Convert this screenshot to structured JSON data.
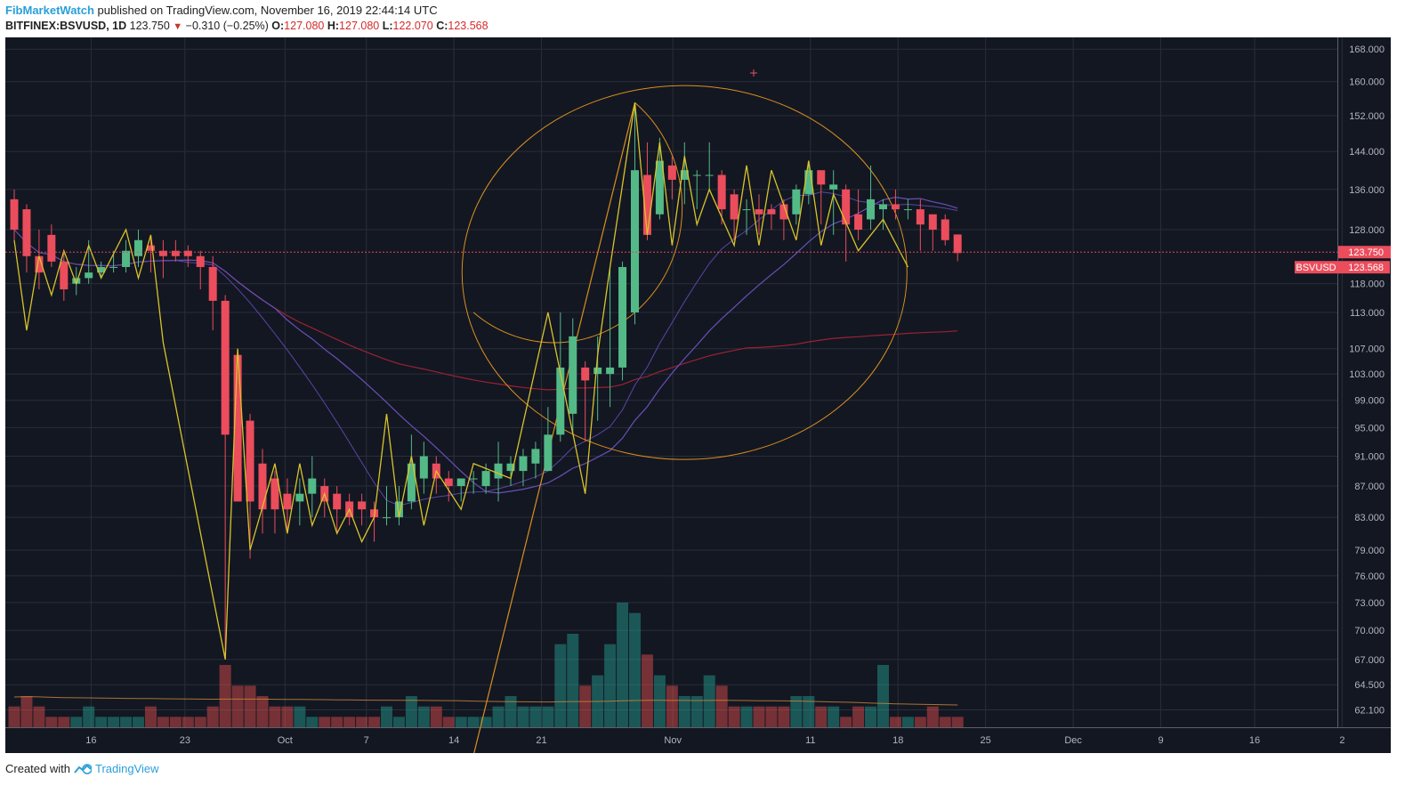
{
  "header": {
    "author": "FibMarketWatch",
    "published": "published on TradingView.com, November 16, 2019 22:44:14 UTC",
    "symbol": "BITFINEX:BSVUSD, 1D",
    "last": "123.750",
    "change": "−0.310 (−0.25%)",
    "o_label": "O:",
    "o_val": "127.080",
    "h_label": "H:",
    "h_val": "127.080",
    "l_label": "L:",
    "l_val": "122.070",
    "c_label": "C:",
    "c_val": "123.568"
  },
  "footer": {
    "created_with": "Created with",
    "brand": "TradingView"
  },
  "colors": {
    "background": "#131722",
    "grid": "#2a2e39",
    "up": "#53b987",
    "down": "#eb4d5c",
    "zigzag": "#d9c32a",
    "fib": "#d8901e",
    "ma_purple": "#6a4fb8",
    "ma_red": "#9b2232"
  },
  "chart_data": {
    "type": "candlestick",
    "symbol": "BSVUSD",
    "y_axis_labels": [
      "168.000",
      "160.000",
      "152.000",
      "144.000",
      "136.000",
      "128.000",
      "118.000",
      "113.000",
      "107.000",
      "103.000",
      "99.000",
      "95.000",
      "91.000",
      "87.000",
      "83.000",
      "79.000",
      "76.000",
      "73.000",
      "70.000",
      "67.000",
      "64.500",
      "62.100"
    ],
    "x_axis_labels": [
      "16",
      "23",
      "Oct",
      "7",
      "14",
      "21",
      "Nov",
      "11",
      "18",
      "25",
      "Dec",
      "9",
      "16",
      "2"
    ],
    "price_tags": [
      {
        "label": "123.750",
        "value": 123.75
      },
      {
        "label": "BSVUSD",
        "value": 123.568
      },
      {
        "label": "123.568",
        "value": 123.568
      }
    ],
    "candles": [
      {
        "o": 134,
        "h": 136,
        "l": 126,
        "c": 128
      },
      {
        "o": 132,
        "h": 133,
        "l": 120,
        "c": 123
      },
      {
        "o": 123,
        "h": 128,
        "l": 117,
        "c": 120
      },
      {
        "o": 127,
        "h": 129,
        "l": 121,
        "c": 122
      },
      {
        "o": 122,
        "h": 124,
        "l": 115,
        "c": 117
      },
      {
        "o": 118,
        "h": 121,
        "l": 116,
        "c": 119
      },
      {
        "o": 119,
        "h": 126,
        "l": 118,
        "c": 120
      },
      {
        "o": 120,
        "h": 122,
        "l": 119,
        "c": 121
      },
      {
        "o": 121,
        "h": 124,
        "l": 120,
        "c": 121
      },
      {
        "o": 121,
        "h": 126,
        "l": 120,
        "c": 124
      },
      {
        "o": 123,
        "h": 128,
        "l": 121,
        "c": 126
      },
      {
        "o": 125,
        "h": 127,
        "l": 120,
        "c": 124
      },
      {
        "o": 124,
        "h": 126,
        "l": 119,
        "c": 123
      },
      {
        "o": 124,
        "h": 126,
        "l": 122,
        "c": 123
      },
      {
        "o": 124,
        "h": 125,
        "l": 121,
        "c": 123
      },
      {
        "o": 123,
        "h": 124,
        "l": 117,
        "c": 121
      },
      {
        "o": 121,
        "h": 123,
        "l": 110,
        "c": 115
      },
      {
        "o": 115,
        "h": 116,
        "l": 67,
        "c": 94
      },
      {
        "o": 106,
        "h": 106,
        "l": 85,
        "c": 85
      },
      {
        "o": 96,
        "h": 97,
        "l": 78,
        "c": 85
      },
      {
        "o": 90,
        "h": 92,
        "l": 81,
        "c": 84
      },
      {
        "o": 88,
        "h": 89,
        "l": 81,
        "c": 84
      },
      {
        "o": 86,
        "h": 88,
        "l": 81,
        "c": 84
      },
      {
        "o": 85,
        "h": 88,
        "l": 82,
        "c": 86
      },
      {
        "o": 86,
        "h": 91,
        "l": 83,
        "c": 88
      },
      {
        "o": 87,
        "h": 88,
        "l": 83,
        "c": 85
      },
      {
        "o": 86,
        "h": 87,
        "l": 81,
        "c": 84
      },
      {
        "o": 85,
        "h": 86,
        "l": 82,
        "c": 83
      },
      {
        "o": 85,
        "h": 86,
        "l": 82,
        "c": 84
      },
      {
        "o": 84,
        "h": 85,
        "l": 80,
        "c": 83
      },
      {
        "o": 83,
        "h": 87,
        "l": 82,
        "c": 83
      },
      {
        "o": 83,
        "h": 87,
        "l": 82,
        "c": 85
      },
      {
        "o": 85,
        "h": 94,
        "l": 84,
        "c": 90
      },
      {
        "o": 88,
        "h": 93,
        "l": 86,
        "c": 91
      },
      {
        "o": 90,
        "h": 91,
        "l": 86,
        "c": 88
      },
      {
        "o": 88,
        "h": 89,
        "l": 85,
        "c": 87
      },
      {
        "o": 87,
        "h": 88,
        "l": 85,
        "c": 88
      },
      {
        "o": 88,
        "h": 89,
        "l": 86,
        "c": 88
      },
      {
        "o": 87,
        "h": 90,
        "l": 86,
        "c": 89
      },
      {
        "o": 88,
        "h": 93,
        "l": 85,
        "c": 90
      },
      {
        "o": 89,
        "h": 91,
        "l": 87,
        "c": 90
      },
      {
        "o": 89,
        "h": 92,
        "l": 87,
        "c": 91
      },
      {
        "o": 90,
        "h": 93,
        "l": 88,
        "c": 92
      },
      {
        "o": 89,
        "h": 98,
        "l": 89,
        "c": 94
      },
      {
        "o": 94,
        "h": 113,
        "l": 93,
        "c": 104
      },
      {
        "o": 97,
        "h": 112,
        "l": 94,
        "c": 109
      },
      {
        "o": 104,
        "h": 105,
        "l": 93,
        "c": 102
      },
      {
        "o": 103,
        "h": 109,
        "l": 96,
        "c": 104
      },
      {
        "o": 103,
        "h": 121,
        "l": 98,
        "c": 104
      },
      {
        "o": 104,
        "h": 122,
        "l": 102,
        "c": 121
      },
      {
        "o": 113,
        "h": 155,
        "l": 111,
        "c": 140
      },
      {
        "o": 139,
        "h": 146,
        "l": 126,
        "c": 127
      },
      {
        "o": 131,
        "h": 147,
        "l": 130,
        "c": 142
      },
      {
        "o": 141,
        "h": 143,
        "l": 134,
        "c": 138
      },
      {
        "o": 138,
        "h": 146,
        "l": 133,
        "c": 140
      },
      {
        "o": 139,
        "h": 140,
        "l": 132,
        "c": 139
      },
      {
        "o": 139,
        "h": 146,
        "l": 136,
        "c": 139
      },
      {
        "o": 139,
        "h": 140,
        "l": 129,
        "c": 132
      },
      {
        "o": 135,
        "h": 136,
        "l": 126,
        "c": 130
      },
      {
        "o": 132,
        "h": 134,
        "l": 127,
        "c": 132
      },
      {
        "o": 132,
        "h": 135,
        "l": 127,
        "c": 131
      },
      {
        "o": 132,
        "h": 133,
        "l": 128,
        "c": 131
      },
      {
        "o": 133,
        "h": 134,
        "l": 126,
        "c": 130
      },
      {
        "o": 131,
        "h": 137,
        "l": 129,
        "c": 136
      },
      {
        "o": 135,
        "h": 142,
        "l": 133,
        "c": 140
      },
      {
        "o": 140,
        "h": 140,
        "l": 129,
        "c": 137
      },
      {
        "o": 136,
        "h": 140,
        "l": 127,
        "c": 137
      },
      {
        "o": 136,
        "h": 137,
        "l": 122,
        "c": 129
      },
      {
        "o": 131,
        "h": 136,
        "l": 126,
        "c": 128
      },
      {
        "o": 130,
        "h": 141,
        "l": 128,
        "c": 134
      },
      {
        "o": 132,
        "h": 134,
        "l": 128,
        "c": 133
      },
      {
        "o": 133,
        "h": 136,
        "l": 130,
        "c": 132
      },
      {
        "o": 132,
        "h": 134,
        "l": 130,
        "c": 132
      },
      {
        "o": 132,
        "h": 134,
        "l": 124,
        "c": 129
      },
      {
        "o": 131,
        "h": 131,
        "l": 124,
        "c": 128
      },
      {
        "o": 130,
        "h": 131,
        "l": 125,
        "c": 126
      },
      {
        "o": 127.08,
        "h": 127.08,
        "l": 122.07,
        "c": 123.568
      }
    ],
    "volume": [
      2,
      3,
      2,
      1,
      1,
      1,
      2,
      1,
      1,
      1,
      1,
      2,
      1,
      1,
      1,
      1,
      2,
      6,
      4,
      4,
      3,
      2,
      2,
      2,
      1,
      1,
      1,
      1,
      1,
      1,
      2,
      1,
      3,
      2,
      2,
      1,
      1,
      1,
      1,
      2,
      3,
      2,
      2,
      2,
      8,
      9,
      4,
      5,
      8,
      12,
      11,
      7,
      5,
      4,
      3,
      3,
      5,
      4,
      2,
      2,
      2,
      2,
      2,
      3,
      3,
      2,
      2,
      1,
      2,
      2,
      6,
      1,
      1,
      1,
      2,
      1,
      1
    ],
    "zigzag": [
      [
        0,
        126
      ],
      [
        1,
        110
      ],
      [
        2,
        123
      ],
      [
        3,
        116
      ],
      [
        4,
        124
      ],
      [
        5,
        118
      ],
      [
        6,
        125
      ],
      [
        7,
        119
      ],
      [
        9,
        128
      ],
      [
        10,
        119
      ],
      [
        11,
        127
      ],
      [
        12,
        108
      ],
      [
        17,
        67
      ],
      [
        18,
        107
      ],
      [
        19,
        79
      ],
      [
        21,
        90
      ],
      [
        22,
        81
      ],
      [
        23,
        90
      ],
      [
        24,
        82
      ],
      [
        25,
        86
      ],
      [
        26,
        81
      ],
      [
        27,
        84
      ],
      [
        28,
        80
      ],
      [
        29,
        83
      ],
      [
        30,
        97
      ],
      [
        31,
        83
      ],
      [
        32,
        91
      ],
      [
        33,
        82
      ],
      [
        34,
        89
      ],
      [
        36,
        84
      ],
      [
        37,
        90
      ],
      [
        40,
        88
      ],
      [
        43,
        113
      ],
      [
        46,
        86
      ],
      [
        47,
        106
      ],
      [
        48,
        121
      ],
      [
        50,
        155
      ],
      [
        51,
        127
      ],
      [
        52,
        146
      ],
      [
        53,
        125
      ],
      [
        54,
        143
      ],
      [
        55,
        129
      ],
      [
        56,
        136
      ],
      [
        58,
        125
      ],
      [
        59,
        141
      ],
      [
        60,
        125
      ],
      [
        61,
        140
      ],
      [
        63,
        126
      ],
      [
        64,
        142
      ],
      [
        65,
        125
      ],
      [
        66,
        135
      ],
      [
        68,
        124
      ],
      [
        70,
        130
      ],
      [
        72,
        121
      ]
    ],
    "fib_anchor_line": [
      [
        37,
        58
      ],
      [
        50,
        155
      ]
    ],
    "horizontal_levels": [
      123.75
    ],
    "ylim": [
      60.5,
      171
    ],
    "log_scale": true,
    "grid": true
  }
}
